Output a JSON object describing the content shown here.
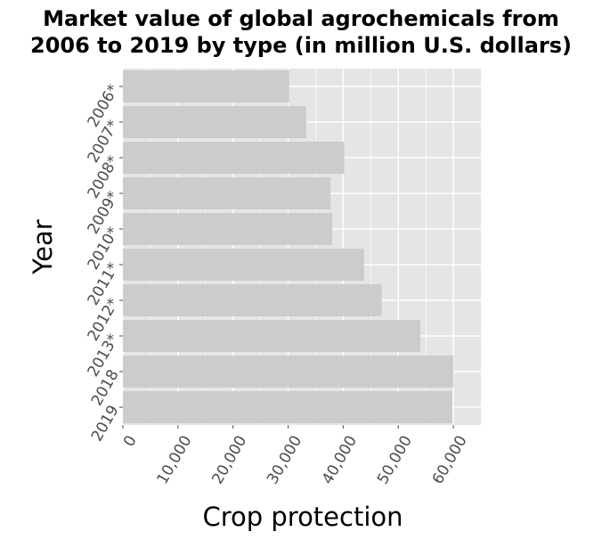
{
  "chart_data": {
    "type": "bar",
    "orientation": "horizontal",
    "title_lines": [
      "Market value of global agrochemicals from",
      "2006 to 2019 by type (in million U.S. dollars)"
    ],
    "xlabel": "Crop protection",
    "ylabel": "Year",
    "categories": [
      "2006*",
      "2007*",
      "2008*",
      "2009*",
      "2010*",
      "2011*",
      "2012*",
      "2013*",
      "2018",
      "2019"
    ],
    "values": [
      30200,
      33300,
      40200,
      37700,
      38000,
      43800,
      47000,
      54000,
      60000,
      59800
    ],
    "xlim": [
      0,
      65000
    ],
    "x_ticks": [
      0,
      10000,
      20000,
      30000,
      40000,
      50000,
      60000
    ],
    "x_tick_labels": [
      "0",
      "10,000",
      "20,000",
      "30,000",
      "40,000",
      "50,000",
      "60,000"
    ],
    "grid": true,
    "colors": {
      "panel": "#e5e5e5",
      "bar": "#cccccc",
      "grid": "#ffffff",
      "tick": "#4d4d4d"
    }
  }
}
